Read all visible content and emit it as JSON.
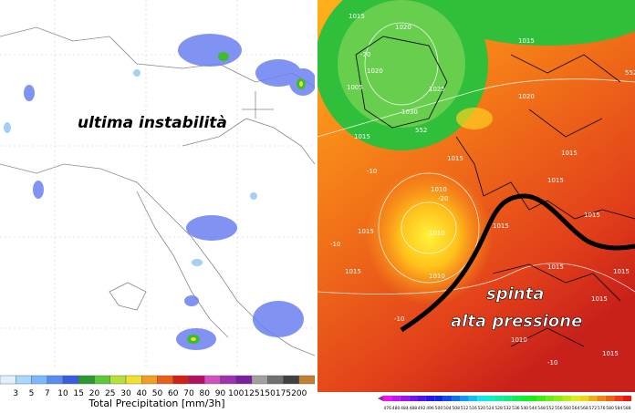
{
  "left_panel": {
    "annotation": "ultima instabilità",
    "legend": {
      "labels": [
        3,
        5,
        7,
        10,
        15,
        20,
        25,
        30,
        40,
        50,
        60,
        70,
        80,
        90,
        100,
        125,
        150,
        175,
        200
      ],
      "title": "Total Precipitation [mm/3h]"
    }
  },
  "right_panel": {
    "annotation_line1": "spinta",
    "annotation_line2": "alta pressione",
    "isobar_labels": [
      1015,
      1020,
      1015,
      1010,
      1005,
      1020,
      1025,
      1030,
      1015,
      1015,
      1010,
      1015,
      1015,
      1010,
      1020,
      1015,
      1015,
      1015,
      1015,
      1010,
      1015,
      1015,
      1015,
      1015
    ],
    "contour_labels": [
      "-20",
      "552",
      "552",
      "-20",
      "-10",
      "-10",
      "-10",
      "-10"
    ],
    "colorbar_labels": [
      476,
      480,
      484,
      488,
      492,
      496,
      500,
      504,
      508,
      512,
      516,
      520,
      524,
      528,
      532,
      536,
      540,
      544,
      548,
      552,
      556,
      560,
      564,
      568,
      572,
      576,
      580,
      584,
      588
    ]
  }
}
